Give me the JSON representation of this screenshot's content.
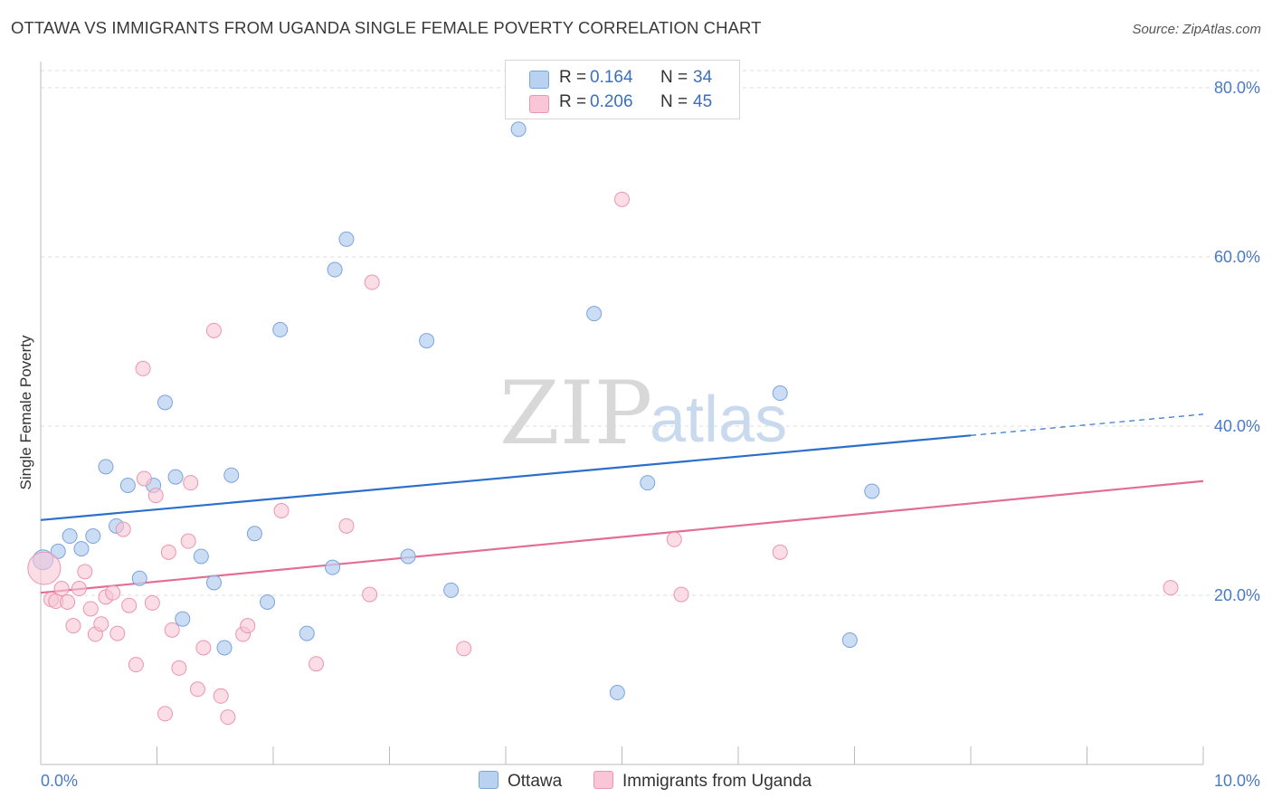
{
  "title": "OTTAWA VS IMMIGRANTS FROM UGANDA SINGLE FEMALE POVERTY CORRELATION CHART",
  "source": "Source: ZipAtlas.com",
  "watermark": {
    "zip": "ZIP",
    "atlas": "atlas"
  },
  "colors": {
    "ottawa_fill": "#b9d2f2",
    "ottawa_stroke": "#7aa4dc",
    "ottawa_line": "#2a6fcb",
    "uganda_fill": "#f8c6d6",
    "uganda_stroke": "#ec94b2",
    "uganda_line": "#e36d97",
    "tick_text": "#4a7ac4",
    "grid": "#dcdcdc"
  },
  "legend": {
    "rows": [
      {
        "r_label": "R =",
        "r_value": "0.164",
        "n_label": "N =",
        "n_value": "34"
      },
      {
        "r_label": "R =",
        "r_value": "0.206",
        "n_label": "N =",
        "n_value": "45"
      }
    ]
  },
  "bottom_legend": {
    "ottawa": "Ottawa",
    "uganda": "Immigrants from Uganda"
  },
  "chart_data": {
    "type": "scatter",
    "title": "OTTAWA VS IMMIGRANTS FROM UGANDA SINGLE FEMALE POVERTY CORRELATION CHART",
    "xlabel": "",
    "ylabel": "Single Female Poverty",
    "xlim": [
      0,
      10
    ],
    "ylim": [
      0,
      80
    ],
    "x_tick_labels": [
      "0.0%",
      "10.0%"
    ],
    "y_ticks": [
      20,
      40,
      60,
      80
    ],
    "y_tick_labels": [
      "20.0%",
      "40.0%",
      "60.0%",
      "80.0%"
    ],
    "grid": "horizontal dashed",
    "legend_placement": "top-center",
    "series": [
      {
        "name": "Ottawa",
        "trend": {
          "x": [
            0,
            8
          ],
          "y": [
            28.9,
            38.9
          ],
          "dashed_extension_to_x": 10,
          "dashed_extension_y": 41.4
        },
        "points": [
          [
            0.02,
            24.2
          ],
          [
            0.15,
            25.2
          ],
          [
            0.25,
            27.0
          ],
          [
            0.35,
            25.5
          ],
          [
            0.45,
            27.0
          ],
          [
            0.56,
            35.2
          ],
          [
            0.65,
            28.2
          ],
          [
            0.75,
            33.0
          ],
          [
            0.85,
            22.0
          ],
          [
            0.97,
            33.0
          ],
          [
            1.07,
            42.8
          ],
          [
            1.16,
            34.0
          ],
          [
            1.22,
            17.2
          ],
          [
            1.38,
            24.6
          ],
          [
            1.49,
            21.5
          ],
          [
            1.58,
            13.8
          ],
          [
            1.64,
            34.2
          ],
          [
            1.84,
            27.3
          ],
          [
            1.95,
            19.2
          ],
          [
            2.06,
            51.4
          ],
          [
            2.29,
            15.5
          ],
          [
            2.51,
            23.3
          ],
          [
            2.53,
            58.5
          ],
          [
            2.63,
            62.1
          ],
          [
            3.16,
            24.6
          ],
          [
            3.32,
            50.1
          ],
          [
            3.53,
            20.6
          ],
          [
            4.11,
            75.1
          ],
          [
            4.76,
            53.3
          ],
          [
            4.96,
            8.5
          ],
          [
            5.22,
            33.3
          ],
          [
            6.36,
            43.9
          ],
          [
            6.96,
            14.7
          ],
          [
            7.15,
            32.3
          ]
        ]
      },
      {
        "name": "Immigrants from Uganda",
        "trend": {
          "x": [
            0,
            10
          ],
          "y": [
            20.3,
            33.5
          ]
        },
        "points": [
          [
            0.03,
            23.2
          ],
          [
            0.09,
            19.5
          ],
          [
            0.13,
            19.3
          ],
          [
            0.18,
            20.8
          ],
          [
            0.23,
            19.2
          ],
          [
            0.28,
            16.4
          ],
          [
            0.33,
            20.8
          ],
          [
            0.38,
            22.8
          ],
          [
            0.43,
            18.4
          ],
          [
            0.47,
            15.4
          ],
          [
            0.52,
            16.6
          ],
          [
            0.56,
            19.8
          ],
          [
            0.62,
            20.3
          ],
          [
            0.66,
            15.5
          ],
          [
            0.71,
            27.8
          ],
          [
            0.76,
            18.8
          ],
          [
            0.82,
            11.8
          ],
          [
            0.88,
            46.8
          ],
          [
            0.89,
            33.8
          ],
          [
            0.96,
            19.1
          ],
          [
            0.99,
            31.8
          ],
          [
            1.07,
            6.0
          ],
          [
            1.1,
            25.1
          ],
          [
            1.13,
            15.9
          ],
          [
            1.19,
            11.4
          ],
          [
            1.27,
            26.4
          ],
          [
            1.29,
            33.3
          ],
          [
            1.35,
            8.9
          ],
          [
            1.4,
            13.8
          ],
          [
            1.49,
            51.3
          ],
          [
            1.55,
            8.1
          ],
          [
            1.61,
            5.6
          ],
          [
            1.74,
            15.4
          ],
          [
            1.78,
            16.4
          ],
          [
            2.07,
            30.0
          ],
          [
            2.37,
            11.9
          ],
          [
            2.63,
            28.2
          ],
          [
            2.85,
            57.0
          ],
          [
            2.83,
            20.1
          ],
          [
            3.64,
            13.7
          ],
          [
            5.0,
            66.8
          ],
          [
            5.45,
            26.6
          ],
          [
            5.51,
            20.1
          ],
          [
            6.36,
            25.1
          ],
          [
            9.72,
            20.9
          ]
        ]
      }
    ]
  }
}
